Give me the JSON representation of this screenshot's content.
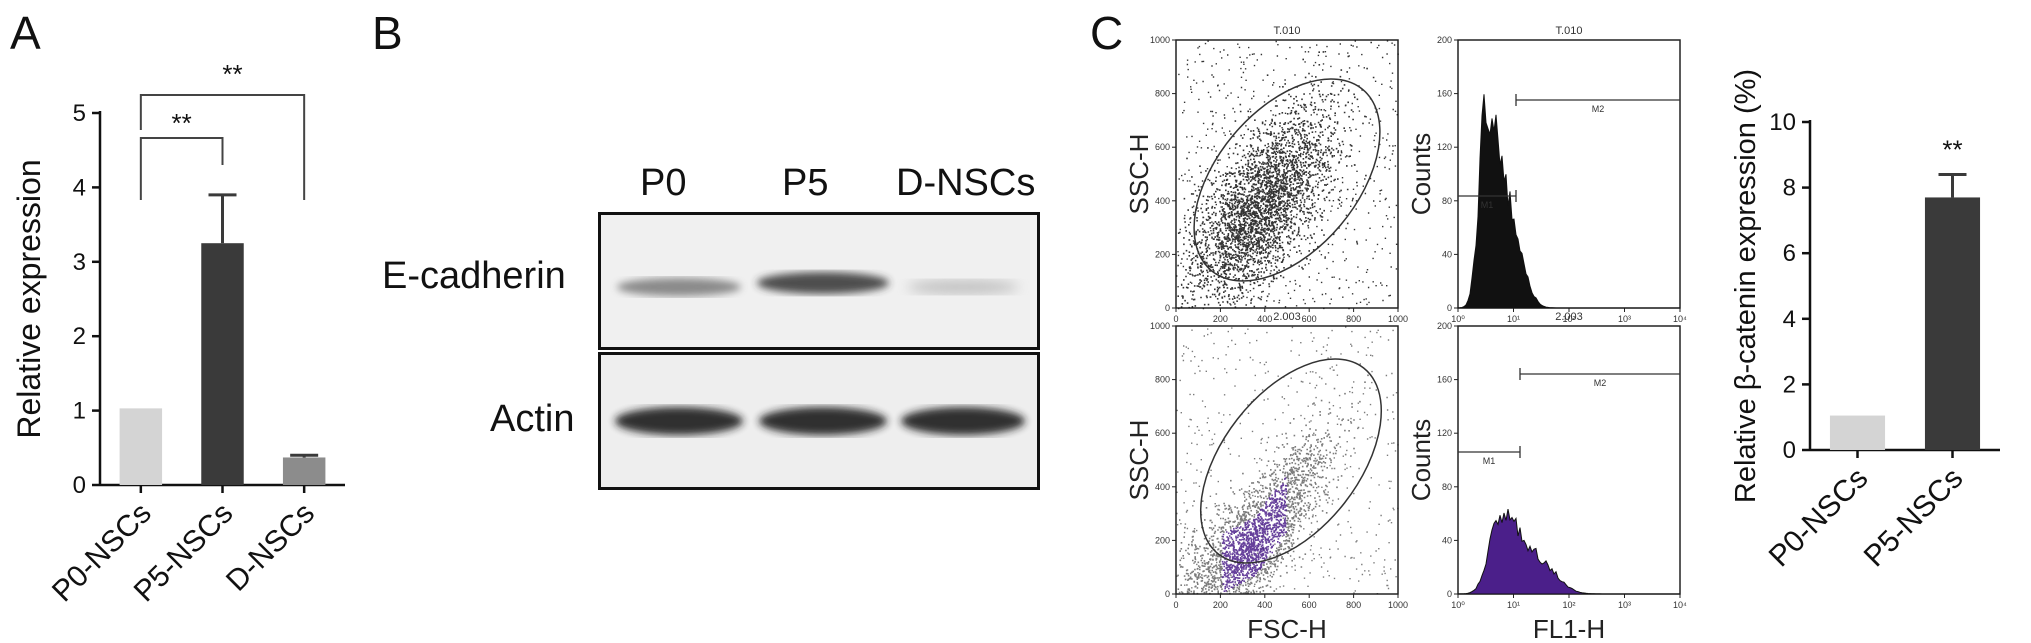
{
  "panels": {
    "a": {
      "letter": "A",
      "ylabel": "Relative expression",
      "yticks": [
        "0",
        "1",
        "2",
        "3",
        "4",
        "5"
      ],
      "sig_1": "**",
      "sig_2": "**"
    },
    "b": {
      "letter": "B",
      "lanes": [
        "P0",
        "P5",
        "D-NSCs"
      ],
      "rows": [
        "E-cadherin",
        "Actin"
      ]
    },
    "c": {
      "letter": "C",
      "plots": {
        "tl": {
          "title": "T.010",
          "ylabel": "SSC-H",
          "yticks": [
            "0",
            "200",
            "400",
            "600",
            "800",
            "1000"
          ],
          "xticks": [
            "0",
            "200",
            "400",
            "600",
            "800",
            "1000"
          ]
        },
        "tr": {
          "title": "T.010",
          "ylabel": "Counts",
          "yticks": [
            "0",
            "40",
            "80",
            "120",
            "160",
            "200"
          ],
          "gate_m1": "M1",
          "gate_m2": "M2",
          "xticks": [
            "10⁰",
            "10¹",
            "10²",
            "10³",
            "10⁴"
          ]
        },
        "bl": {
          "title": "2.003",
          "ylabel": "SSC-H",
          "xlabel": "FSC-H",
          "yticks": [
            "0",
            "200",
            "400",
            "600",
            "800",
            "1000"
          ],
          "xticks": [
            "0",
            "200",
            "400",
            "600",
            "800",
            "1000"
          ]
        },
        "br": {
          "title": "2.003",
          "ylabel": "Counts",
          "xlabel": "FL1-H",
          "yticks": [
            "0",
            "40",
            "80",
            "120",
            "160",
            "200"
          ],
          "gate_m1": "M1",
          "gate_m2": "M2",
          "xticks": [
            "10⁰",
            "10¹",
            "10²",
            "10³",
            "10⁴"
          ]
        }
      },
      "bar_ylabel": "Relative β-catenin expression (%)",
      "bar_yticks": [
        "0",
        "2",
        "4",
        "6",
        "8",
        "10"
      ],
      "bar_sig": "**"
    }
  },
  "colors": {
    "light_bar": "#d4d4d4",
    "dark_bar": "#3a3a3a",
    "mid_bar": "#8c8c8c",
    "flow_purple": "#4b1f8a",
    "axis": "#111111"
  },
  "chart_data": [
    {
      "type": "bar",
      "categories": [
        "P0-NSCs",
        "P5-NSCs",
        "D-NSCs"
      ],
      "values": [
        1.03,
        3.25,
        0.37
      ],
      "errors": [
        0,
        0.65,
        0.03
      ],
      "xlabel": "",
      "ylabel": "Relative expression",
      "ylim": [
        0,
        5
      ],
      "significance": [
        "**",
        "**"
      ],
      "grid": false
    },
    {
      "type": "bar",
      "categories": [
        "P0-NSCs",
        "P5-NSCs"
      ],
      "values": [
        1.05,
        7.7
      ],
      "errors": [
        0,
        0.7
      ],
      "xlabel": "",
      "ylabel": "Relative β-catenin expression (%)",
      "ylim": [
        0,
        10
      ],
      "significance": [
        "**"
      ],
      "grid": false
    }
  ]
}
